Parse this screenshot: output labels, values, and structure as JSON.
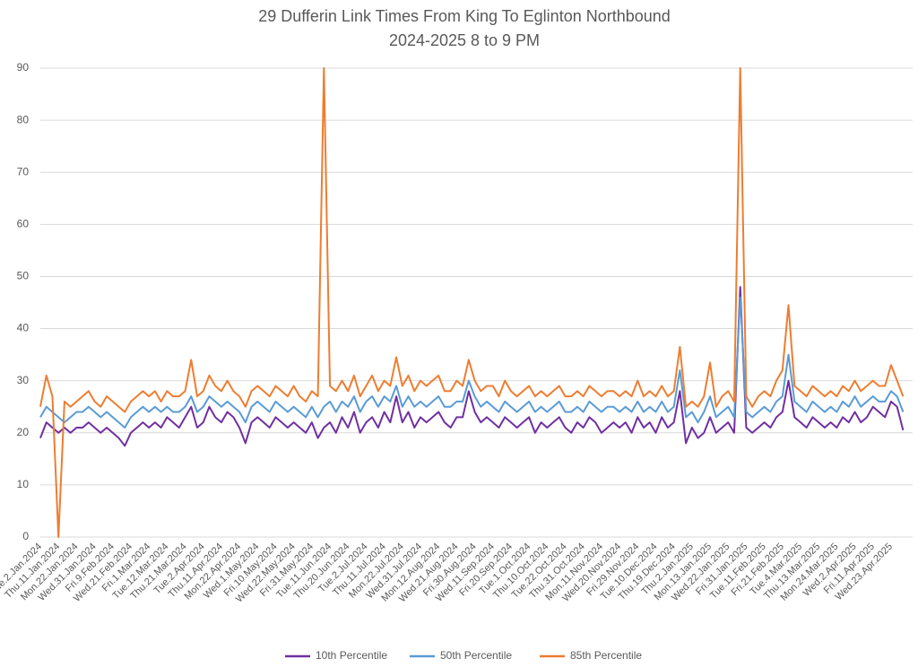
{
  "chart_data": {
    "type": "line",
    "title": "29 Dufferin Link Times From King To Eglinton Northbound",
    "subtitle": "2024-2025 8 to 9 PM",
    "categories": [
      "Tue.2.Jan.2024",
      null,
      null,
      "Thu.11.Jan.2024",
      null,
      null,
      "Mon.22.Jan.2024",
      null,
      null,
      "Wed.31.Jan.2024",
      null,
      null,
      "Fri.9.Feb.2024",
      null,
      null,
      "Wed.21.Feb.2024",
      null,
      null,
      "Fri.1.Mar.2024",
      null,
      null,
      "Tue.12.Mar.2024",
      null,
      null,
      "Thu.21.Mar.2024",
      null,
      null,
      "Tue.2.Apr.2024",
      null,
      null,
      "Thu.11.Apr.2024",
      null,
      null,
      "Mon.22.Apr.2024",
      null,
      null,
      "Wed.1.May.2024",
      null,
      null,
      "Fri.10.May.2024",
      null,
      null,
      "Wed.22.May.2024",
      null,
      null,
      "Fri.31.May.2024",
      null,
      null,
      "Tue.11.Jun.2024",
      null,
      null,
      "Thu.20.Jun.2024",
      null,
      null,
      "Tue.2.Jul.2024",
      null,
      null,
      "Thu.11.Jul.2024",
      null,
      null,
      "Mon.22.Jul.2024",
      null,
      null,
      "Wed.31.Jul.2024",
      null,
      null,
      "Mon.12.Aug.2024",
      null,
      null,
      "Wed.21.Aug.2024",
      null,
      null,
      "Fri.30.Aug.2024",
      null,
      null,
      "Wed.11.Sep.2024",
      null,
      null,
      "Fri.20.Sep.2024",
      null,
      null,
      "Tue.1.Oct.2024",
      null,
      null,
      "Thu.10.Oct.2024",
      null,
      null,
      "Tue.22.Oct.2024",
      null,
      null,
      "Thu.31.Oct.2024",
      null,
      null,
      "Mon.11.Nov.2024",
      null,
      null,
      "Wed.20.Nov.2024",
      null,
      null,
      "Fri.29.Nov.2024",
      null,
      null,
      "Tue.10.Dec.2024",
      null,
      null,
      "Thu.19.Dec.2024",
      null,
      null,
      "Thu.2.Jan.2025",
      null,
      null,
      "Mon.13.Jan.2025",
      null,
      null,
      "Wed.22.Jan.2025",
      null,
      null,
      "Fri.31.Jan.2025",
      null,
      null,
      "Tue.11.Feb.2025",
      null,
      null,
      "Fri.21.Feb.2025",
      null,
      null,
      "Tue.4.Mar.2025",
      null,
      null,
      "Thu.13.Mar.2025",
      null,
      null,
      "Mon.24.Mar.2025",
      null,
      null,
      "Wed.2.Apr.2025",
      null,
      null,
      "Fri.11.Apr.2025",
      null,
      null,
      "Wed.23.Apr.2025",
      null,
      null
    ],
    "series": [
      {
        "name": "10th Percentile",
        "color": "#7030a0",
        "values": [
          19,
          22,
          21,
          20,
          21,
          20,
          21,
          21,
          22,
          21,
          20,
          21,
          20,
          19,
          17.5,
          20,
          21,
          22,
          21,
          22,
          21,
          23,
          22,
          21,
          23,
          25,
          21,
          22,
          25,
          23,
          22,
          24,
          23,
          21,
          18,
          22,
          23,
          22,
          21,
          23,
          22,
          21,
          22,
          21,
          20,
          22,
          19,
          21,
          22,
          20,
          23,
          21,
          24,
          20,
          22,
          23,
          21,
          24,
          22,
          27,
          22,
          24,
          21,
          23,
          22,
          23,
          24,
          22,
          21,
          23,
          23,
          28,
          24,
          22,
          23,
          22,
          21,
          23,
          22,
          21,
          22,
          23,
          20,
          22,
          21,
          22,
          23,
          21,
          20,
          22,
          21,
          23,
          22,
          20,
          21,
          22,
          21,
          22,
          20,
          23,
          21,
          22,
          20,
          23,
          21,
          22,
          28,
          18,
          21,
          19,
          20,
          23,
          20,
          21,
          22,
          20,
          48,
          21,
          20,
          21,
          22,
          21,
          23,
          24,
          30,
          23,
          22,
          21,
          23,
          22,
          21,
          22,
          21,
          23,
          22,
          24,
          22,
          23,
          25,
          24,
          23,
          26,
          25,
          20.5
        ]
      },
      {
        "name": "50th Percentile",
        "color": "#5b9bd5",
        "values": [
          23,
          25,
          24,
          23,
          22,
          23,
          24,
          24,
          25,
          24,
          23,
          24,
          23,
          22,
          21,
          23,
          24,
          25,
          24,
          25,
          24,
          25,
          24,
          24,
          25,
          27,
          24,
          25,
          27,
          26,
          25,
          26,
          25,
          24,
          22,
          25,
          26,
          25,
          24,
          26,
          25,
          24,
          25,
          24,
          23,
          25,
          23,
          25,
          26,
          24,
          26,
          25,
          27,
          24,
          26,
          27,
          25,
          27,
          26,
          29,
          25,
          27,
          25,
          26,
          25,
          26,
          27,
          25,
          25,
          26,
          26,
          30,
          27,
          25,
          26,
          25,
          24,
          26,
          25,
          24,
          25,
          26,
          24,
          25,
          24,
          25,
          26,
          24,
          24,
          25,
          24,
          26,
          25,
          24,
          25,
          25,
          24,
          25,
          24,
          26,
          24,
          25,
          24,
          26,
          24,
          25,
          32,
          23,
          24,
          22,
          24,
          27,
          23,
          24,
          25,
          23,
          46,
          24,
          23,
          24,
          25,
          24,
          26,
          27,
          35,
          26,
          25,
          24,
          26,
          25,
          24,
          25,
          24,
          26,
          25,
          27,
          25,
          26,
          27,
          26,
          26,
          28,
          27,
          24
        ]
      },
      {
        "name": "85th Percentile",
        "color": "#ed7d31",
        "values": [
          25,
          31,
          27,
          0,
          26,
          25,
          26,
          27,
          28,
          26,
          25,
          27,
          26,
          25,
          24,
          26,
          27,
          28,
          27,
          28,
          26,
          28,
          27,
          27,
          28,
          34,
          27,
          28,
          31,
          29,
          28,
          30,
          28,
          27,
          25,
          28,
          29,
          28,
          27,
          29,
          28,
          27,
          29,
          27,
          26,
          28,
          27,
          90,
          29,
          28,
          30,
          28,
          31,
          27,
          29,
          31,
          28,
          30,
          29,
          34.5,
          29,
          31,
          28,
          30,
          29,
          30,
          31,
          28,
          28,
          30,
          29,
          34,
          30,
          28,
          29,
          29,
          27,
          30,
          28,
          27,
          28,
          29,
          27,
          28,
          27,
          28,
          29,
          27,
          27,
          28,
          27,
          29,
          28,
          27,
          28,
          28,
          27,
          28,
          27,
          30,
          27,
          28,
          27,
          29,
          27,
          28,
          36.5,
          25,
          26,
          25,
          27,
          33.5,
          25,
          27,
          28,
          26,
          90,
          27,
          25,
          27,
          28,
          27,
          30,
          32,
          44.5,
          29,
          28,
          27,
          29,
          28,
          27,
          28,
          27,
          29,
          28,
          30,
          28,
          29,
          30,
          29,
          29,
          33,
          30,
          27
        ]
      }
    ],
    "ylim": [
      0,
      90
    ],
    "yticks": [
      0,
      10,
      20,
      30,
      40,
      50,
      60,
      70,
      80,
      90
    ],
    "grid": true
  }
}
